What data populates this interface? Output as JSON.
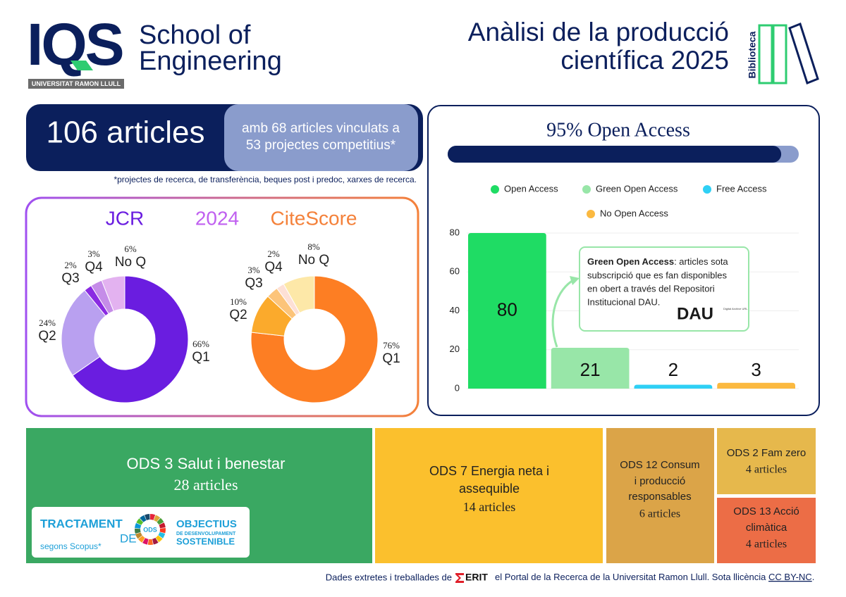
{
  "header": {
    "logo": "IQS",
    "logo_sub": "UNIVERSITAT RAMON LLULL",
    "school": [
      "School of",
      "Engineering"
    ],
    "title": [
      "Anàlisi de la producció",
      "científica 2025"
    ],
    "badge": "Biblioteca"
  },
  "articles": {
    "headline": "106 articles",
    "detail": [
      "amb 68 articles vinculats a",
      "53 projectes competitius*"
    ],
    "footnote": "*projectes de recerca, de transferència, beques post i predoc, xarxes de recerca."
  },
  "donut_panel": {
    "year": "2024"
  },
  "chart_data": [
    {
      "type": "donut",
      "title": "JCR",
      "title_color": "#6a1de0",
      "categories": [
        "Q1",
        "Q2",
        "Q3",
        "Q4",
        "No Q"
      ],
      "values": [
        66,
        24,
        2,
        3,
        6
      ],
      "value_labels": [
        "66%",
        "24%",
        "2%",
        "3%",
        "6%"
      ],
      "colors": [
        "#6a1de0",
        "#b9a0f0",
        "#8a2be2",
        "#c58ce8",
        "#e3b2f0"
      ]
    },
    {
      "type": "donut",
      "title": "CiteScore",
      "title_color": "#f4813a",
      "categories": [
        "Q1",
        "Q2",
        "Q3",
        "Q4",
        "No Q"
      ],
      "values": [
        76,
        10,
        3,
        2,
        8
      ],
      "value_labels": [
        "76%",
        "10%",
        "3%",
        "2%",
        "8%"
      ],
      "colors": [
        "#fd7e23",
        "#fbaa2c",
        "#fcc47a",
        "#fde0d6",
        "#fde8a8"
      ]
    },
    {
      "type": "bar",
      "title": "95% Open Access",
      "progress": 95,
      "categories": [
        "Open Access",
        "Green Open Access",
        "Free Access",
        "No Open Access"
      ],
      "values": [
        80,
        21,
        2,
        3
      ],
      "colors": [
        "#1fdc64",
        "#98e6a8",
        "#2fd0f5",
        "#fbb940"
      ],
      "ylim": [
        0,
        80
      ],
      "yticks": [
        0,
        20,
        40,
        60,
        80
      ],
      "grid": true,
      "legend": "top"
    }
  ],
  "tooltip": {
    "title": "Green Open Access",
    "lines": [
      ": articles sota",
      "subscripció que es fan disponibles",
      "en obert a través del Repositori",
      "Institucional DAU."
    ],
    "logo": "DAU",
    "logo_caption": "Digital Archive URL"
  },
  "ods": [
    {
      "label": [
        "ODS 3 Salut i benestar"
      ],
      "count": "28 articles"
    },
    {
      "label": [
        "ODS 7 Energia neta i",
        "assequible"
      ],
      "count": "14 articles"
    },
    {
      "label": [
        "ODS 12 Consum",
        "i producció",
        "responsables"
      ],
      "count": "6 articles"
    },
    {
      "label": [
        "ODS 2 Fam zero"
      ],
      "count": "4 articles"
    },
    {
      "label": [
        "ODS 13 Acció",
        "climàtica"
      ],
      "count": "4 articles"
    }
  ],
  "ods_badge": {
    "left": [
      "TRACTAMENT",
      "DE"
    ],
    "note": "segons Scopus*",
    "ring": "ODS",
    "right": [
      "OBJECTIUS",
      "DE DESENVOLUPAMENT",
      "SOSTENIBLE"
    ]
  },
  "footer": {
    "prefix": "Dades extretes i treballades de",
    "brand": "ERIT",
    "rest": "el Portal de la Recerca de la Universitat Ramon Llull. Sota llicència",
    "license": "CC BY-NC",
    "end": "."
  }
}
